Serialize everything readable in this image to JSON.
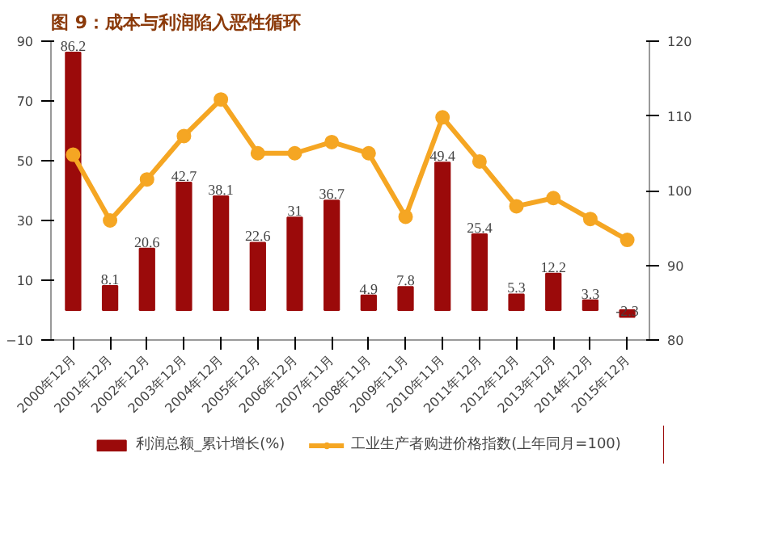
{
  "chart_data": {
    "type": "bar",
    "title": "图 9：成本与利润陷入恶性循环",
    "categories": [
      "2000年12月",
      "2001年12月",
      "2002年12月",
      "2003年12月",
      "2004年12月",
      "2005年12月",
      "2006年12月",
      "2007年11月",
      "2008年11月",
      "2009年11月",
      "2010年11月",
      "2011年12月",
      "2012年12月",
      "2013年12月",
      "2014年12月",
      "2015年12月"
    ],
    "series": [
      {
        "name": "利润总额_累计增长(%)",
        "color": "#9b0a0a",
        "values": [
          86.2,
          8.1,
          20.6,
          42.7,
          38.1,
          22.6,
          31,
          36.7,
          4.9,
          7.8,
          49.4,
          25.4,
          5.3,
          12.2,
          3.3,
          -2.3
        ],
        "data_labels": true
      },
      {
        "name": "工业生产者购进价格指数(上年同月=100)",
        "type": "line",
        "axis": "y2",
        "color": "#f5a623",
        "marker": "circle",
        "values": [
          104.8,
          96.0,
          101.5,
          107.3,
          112.2,
          105.0,
          105.0,
          106.5,
          105.0,
          96.5,
          109.8,
          103.9,
          97.9,
          99.0,
          96.2,
          93.4
        ]
      }
    ],
    "ylim": [
      -10,
      90
    ],
    "yticks": [
      -10,
      10,
      30,
      50,
      70,
      90
    ],
    "y2lim": [
      80,
      120
    ],
    "y2ticks": [
      80,
      90,
      100,
      110,
      120
    ],
    "grid": false,
    "legend": "bottom"
  }
}
